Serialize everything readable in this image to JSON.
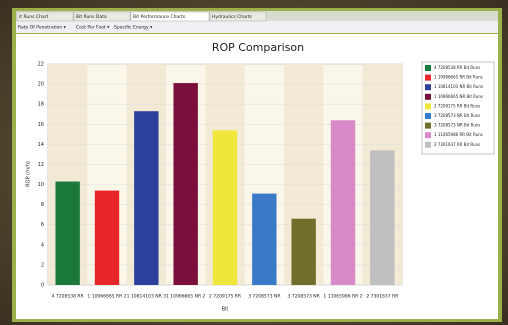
{
  "tabs": [
    "it Runs Chart",
    "Bit Runs Data",
    "Bit Performance Charts",
    "Hydraulics Charts"
  ],
  "menu": [
    "Rate Of Penetration ▾",
    "Cost Per Foot ▾",
    "Specific Energy ▾"
  ],
  "chart_data": {
    "type": "bar",
    "title": "ROP Comparison",
    "y_label": "ROP (m/h)",
    "x_label": "Bit",
    "categories": [
      "4 7208538 RR",
      "1 10966665 RR 2",
      "1 10814103 NR 3",
      "1 10966665 NR 2",
      "2 7209175 RR",
      "3 7208573 NR",
      "3 7208573 NR",
      "1 11065986 RR 2",
      "2 7301637 RR"
    ],
    "values": [
      10.3,
      9.4,
      17.3,
      20.1,
      15.4,
      9.1,
      6.6,
      16.4,
      13.4
    ],
    "colors": [
      "#1b7a3b",
      "#e8262a",
      "#2b3f9b",
      "#7a0f3b",
      "#f0e63c",
      "#3a78c8",
      "#6f6f2b",
      "#d88ac8",
      "#bfbfbf"
    ],
    "legend": [
      "4 7208538 RR Bit Runs",
      "1 10966665 RR Bit Runs",
      "1 10814103 NR Bit Runs",
      "1 10966665 NR Bit Runs",
      "2 7209175 RR Bit Runs",
      "3 7208573 NR Bit Runs",
      "3 7208573 NR Bit Runs",
      "1 11065986 RR Bit Runs",
      "2 7301637 RR Bit Runs"
    ],
    "ylim": [
      0,
      22
    ],
    "yticks": [
      0,
      2,
      4,
      6,
      8,
      10,
      12,
      14,
      16,
      18,
      20,
      22
    ],
    "grid": true
  }
}
